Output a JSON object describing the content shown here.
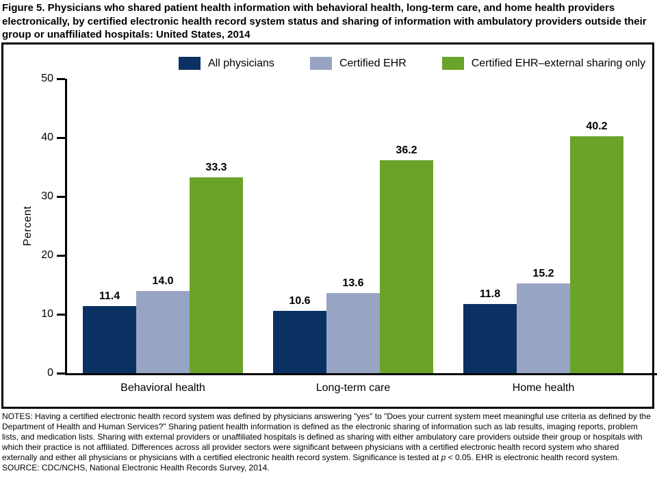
{
  "title": "Figure 5. Physicians who shared patient health information with behavioral health, long-term care, and home health providers electronically, by certified electronic health record system status and sharing of information with ambulatory providers outside their group or unaffiliated hospitals: United States, 2014",
  "chart_data": {
    "type": "bar",
    "title": "",
    "categories": [
      "Behavioral health",
      "Long-term care",
      "Home health"
    ],
    "series": [
      {
        "name": "All physicians",
        "color": "#0a3161",
        "values": [
          11.4,
          10.6,
          11.8
        ]
      },
      {
        "name": "Certified EHR",
        "color": "#98a4c4",
        "values": [
          14.0,
          13.6,
          15.2
        ]
      },
      {
        "name": "Certified EHR–external sharing only",
        "color": "#6aa32a",
        "values": [
          33.3,
          36.2,
          40.2
        ]
      }
    ],
    "xlabel": "",
    "ylabel": "Percent",
    "ylim": [
      0,
      50
    ],
    "yticks": [
      0,
      10,
      20,
      30,
      40,
      50
    ],
    "grid": false,
    "legend_position": "top",
    "value_labels_shown": true,
    "axis_color": "#000000"
  },
  "notes": {
    "prefix": "NOTES: Having a certified electronic health record system was defined by physicians answering \"yes\" to \"Does your current system meet meaningful use criteria as defined by the Department of Health and Human Services?\" Sharing patient health information is defined as the electronic sharing of information such as lab results, imaging reports, problem lists, and medication lists. Sharing with external providers or unaffiliated hospitals is defined as sharing with either ambulatory care providers outside their group or hospitals with which their practice is not affiliated. Differences across all provider sectors were significant between physicians with a certified electronic health record system who shared externally and either all physicians or physicians with a certified electronic health record system. Significance is tested at ",
    "p_symbol": "p",
    "suffix": " < 0.05. EHR is electronic health record system.",
    "source": "SOURCE: CDC/NCHS, National Electronic Health Records Survey, 2014."
  }
}
